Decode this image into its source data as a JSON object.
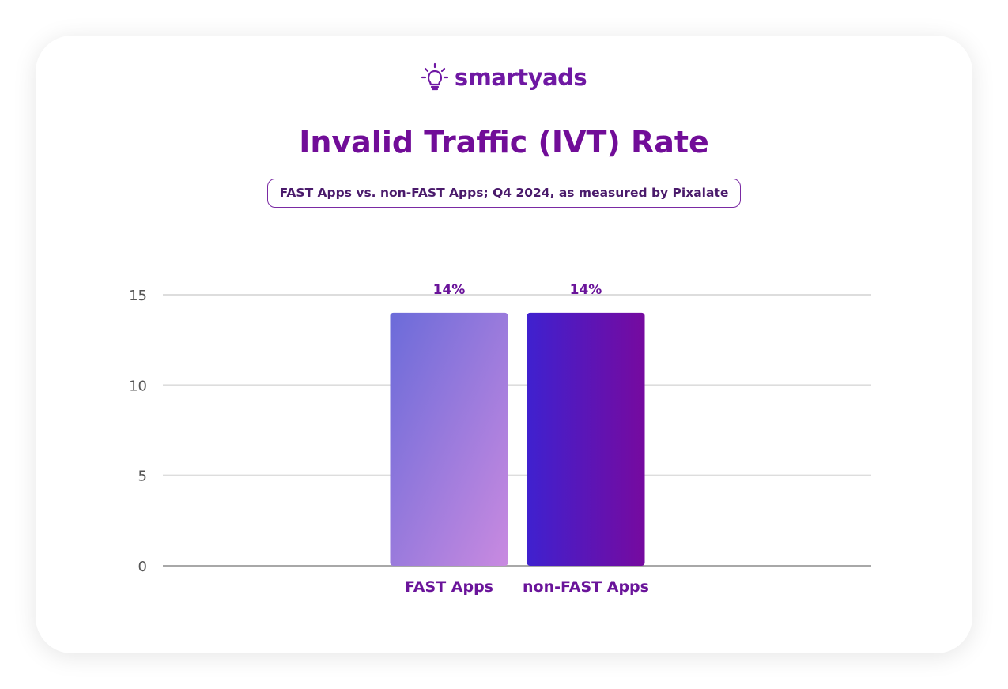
{
  "brand": {
    "logo_text": "smartyads",
    "logo_icon": "lightbulb-icon",
    "primary_color": "#710d98"
  },
  "chart_data": {
    "type": "bar",
    "title": "Invalid Traffic (IVT) Rate",
    "subtitle": "FAST Apps vs. non-FAST Apps; Q4 2024, as measured by Pixalate",
    "categories": [
      "FAST Apps",
      "non-FAST Apps"
    ],
    "values": [
      14,
      14
    ],
    "value_labels": [
      "14%",
      "14%"
    ],
    "yticks": [
      0,
      5,
      10,
      15
    ],
    "ylim": [
      0,
      15
    ],
    "xlabel": "",
    "ylabel": "",
    "grid": true,
    "bar_colors": [
      {
        "from": "#6b6bd9",
        "to": "#c98ae0"
      },
      {
        "from": "#3f21cf",
        "to": "#760a9f"
      }
    ]
  }
}
